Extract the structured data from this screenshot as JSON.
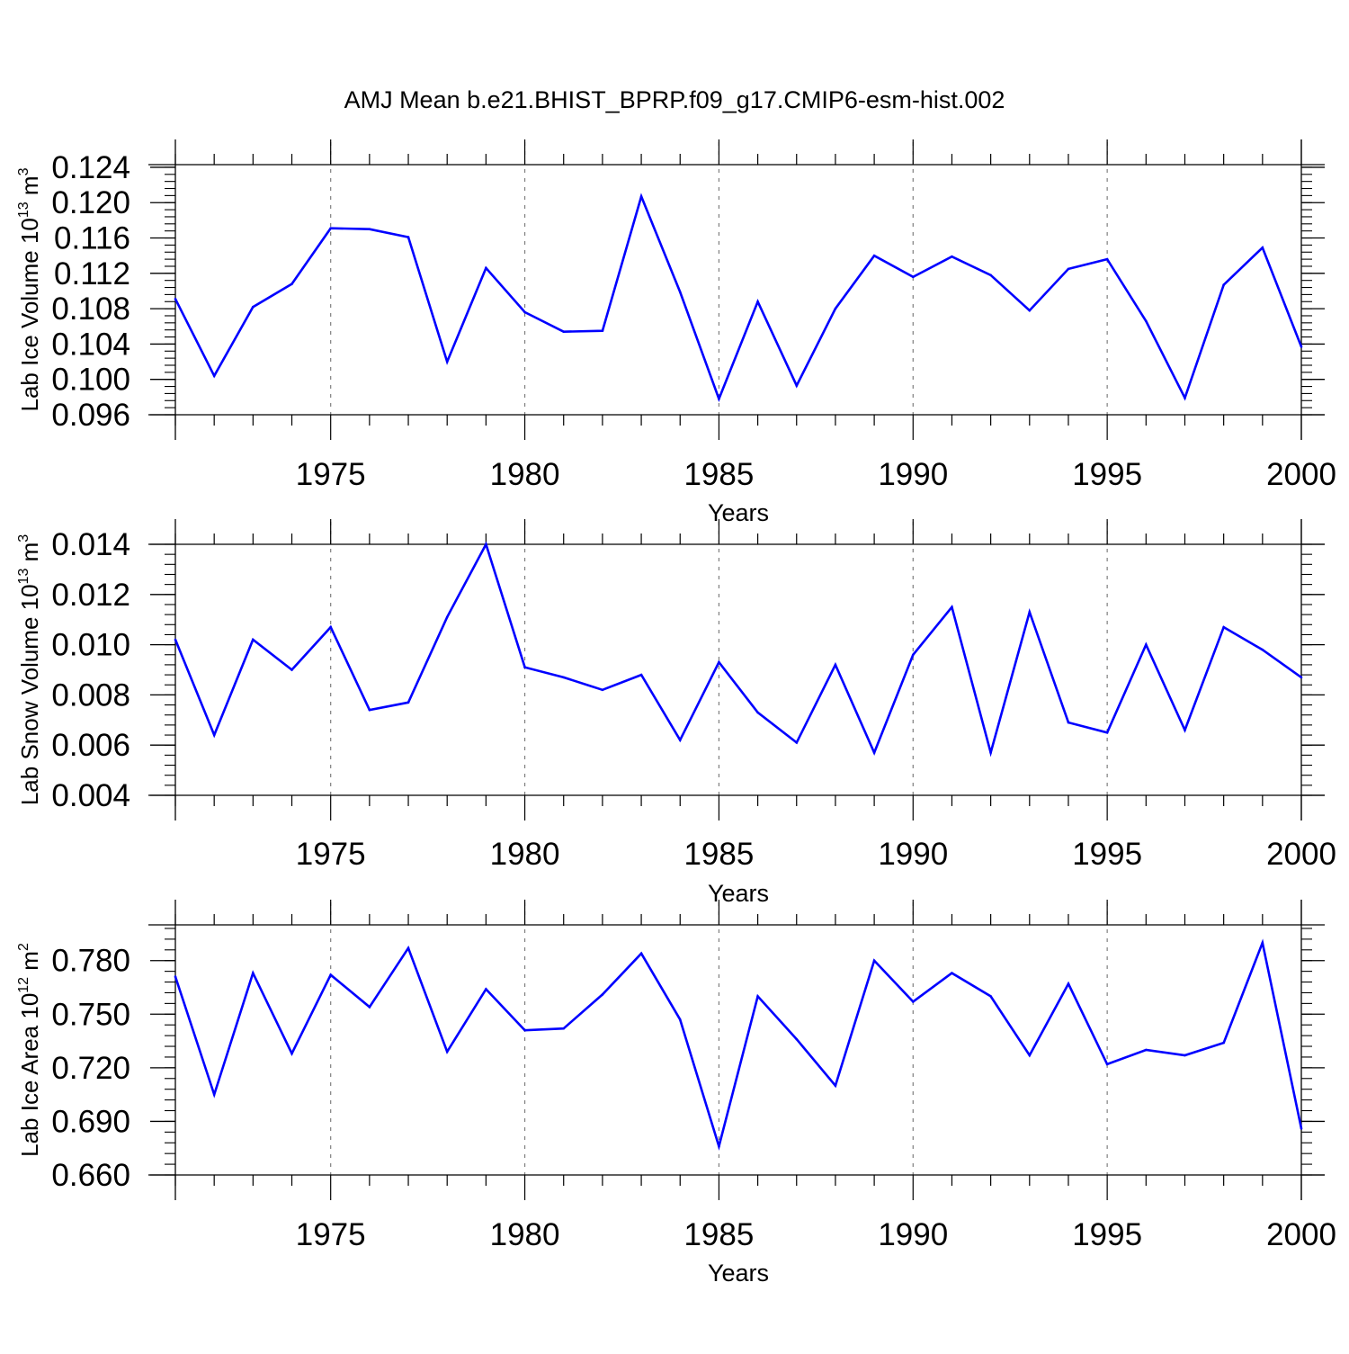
{
  "title": "AMJ Mean b.e21.BHIST_BPRP.f09_g17.CMIP6-esm-hist.002",
  "colors": {
    "line": "#0000ff",
    "axis": "#000000",
    "grid": "#7f7f7f"
  },
  "chart_data": [
    {
      "type": "line",
      "name": "lab-ice-volume",
      "ylabel": {
        "main": "Lab Ice Volume 10",
        "sup1": "13",
        "mid": " m",
        "sup2": "3"
      },
      "xlabel": "Years",
      "xlim": [
        1971,
        2000
      ],
      "ylim": [
        0.096,
        0.1243
      ],
      "yticks": [
        0.096,
        0.1,
        0.104,
        0.108,
        0.112,
        0.116,
        0.12,
        0.124
      ],
      "ytick_labels": [
        "0.096",
        "0.100",
        "0.104",
        "0.108",
        "0.112",
        "0.116",
        "0.120",
        "0.124"
      ],
      "yminor_step": 0.0008,
      "xticks": [
        1975,
        1980,
        1985,
        1990,
        1995,
        2000
      ],
      "xtick_labels": [
        "1975",
        "1980",
        "1985",
        "1990",
        "1995",
        "2000"
      ],
      "grid_x": [
        1975,
        1980,
        1985,
        1990,
        1995
      ],
      "x": [
        1971,
        1972,
        1973,
        1974,
        1975,
        1976,
        1977,
        1978,
        1979,
        1980,
        1981,
        1982,
        1983,
        1984,
        1985,
        1986,
        1987,
        1988,
        1989,
        1990,
        1991,
        1992,
        1993,
        1994,
        1995,
        1996,
        1997,
        1998,
        1999,
        2000
      ],
      "values": [
        0.1091,
        0.1004,
        0.1082,
        0.1108,
        0.1171,
        0.117,
        0.1161,
        0.102,
        0.1126,
        0.1076,
        0.1054,
        0.1055,
        0.1207,
        0.1099,
        0.0978,
        0.1088,
        0.0993,
        0.108,
        0.114,
        0.1116,
        0.1139,
        0.1118,
        0.1078,
        0.1125,
        0.1136,
        0.1066,
        0.0979,
        0.1107,
        0.1149,
        0.1037
      ]
    },
    {
      "type": "line",
      "name": "lab-snow-volume",
      "ylabel": {
        "main": "Lab Snow Volume 10",
        "sup1": "13",
        "mid": " m",
        "sup2": "3"
      },
      "xlabel": "Years",
      "xlim": [
        1971,
        2000
      ],
      "ylim": [
        0.004,
        0.014
      ],
      "yticks": [
        0.004,
        0.006,
        0.008,
        0.01,
        0.012,
        0.014
      ],
      "ytick_labels": [
        "0.004",
        "0.006",
        "0.008",
        "0.010",
        "0.012",
        "0.014"
      ],
      "yminor_step": 0.0004,
      "xticks": [
        1975,
        1980,
        1985,
        1990,
        1995,
        2000
      ],
      "xtick_labels": [
        "1975",
        "1980",
        "1985",
        "1990",
        "1995",
        "2000"
      ],
      "grid_x": [
        1975,
        1980,
        1985,
        1990,
        1995
      ],
      "x": [
        1971,
        1972,
        1973,
        1974,
        1975,
        1976,
        1977,
        1978,
        1979,
        1980,
        1981,
        1982,
        1983,
        1984,
        1985,
        1986,
        1987,
        1988,
        1989,
        1990,
        1991,
        1992,
        1993,
        1994,
        1995,
        1996,
        1997,
        1998,
        1999,
        2000
      ],
      "values": [
        0.0102,
        0.0064,
        0.0102,
        0.009,
        0.0107,
        0.0074,
        0.0077,
        0.0111,
        0.014,
        0.0091,
        0.0087,
        0.0082,
        0.0088,
        0.0062,
        0.0093,
        0.0073,
        0.0061,
        0.0092,
        0.0057,
        0.0096,
        0.0115,
        0.0057,
        0.0113,
        0.0069,
        0.0065,
        0.01,
        0.0066,
        0.0107,
        0.0098,
        0.0087
      ]
    },
    {
      "type": "line",
      "name": "lab-ice-area",
      "ylabel": {
        "main": "Lab Ice Area 10",
        "sup1": "12",
        "mid": " m",
        "sup2": "2"
      },
      "xlabel": "Years",
      "xlim": [
        1971,
        2000
      ],
      "ylim": [
        0.66,
        0.8
      ],
      "yticks": [
        0.66,
        0.69,
        0.72,
        0.75,
        0.78
      ],
      "ytick_labels": [
        "0.660",
        "0.690",
        "0.720",
        "0.750",
        "0.780"
      ],
      "yminor_step": 0.006,
      "xticks": [
        1975,
        1980,
        1985,
        1990,
        1995,
        2000
      ],
      "xtick_labels": [
        "1975",
        "1980",
        "1985",
        "1990",
        "1995",
        "2000"
      ],
      "grid_x": [
        1975,
        1980,
        1985,
        1990,
        1995
      ],
      "x": [
        1971,
        1972,
        1973,
        1974,
        1975,
        1976,
        1977,
        1978,
        1979,
        1980,
        1981,
        1982,
        1983,
        1984,
        1985,
        1986,
        1987,
        1988,
        1989,
        1990,
        1991,
        1992,
        1993,
        1994,
        1995,
        1996,
        1997,
        1998,
        1999,
        2000
      ],
      "values": [
        0.771,
        0.705,
        0.773,
        0.728,
        0.772,
        0.754,
        0.787,
        0.729,
        0.764,
        0.741,
        0.742,
        0.761,
        0.784,
        0.747,
        0.676,
        0.76,
        0.736,
        0.71,
        0.78,
        0.757,
        0.773,
        0.76,
        0.727,
        0.767,
        0.722,
        0.73,
        0.727,
        0.734,
        0.79,
        0.686
      ]
    }
  ]
}
